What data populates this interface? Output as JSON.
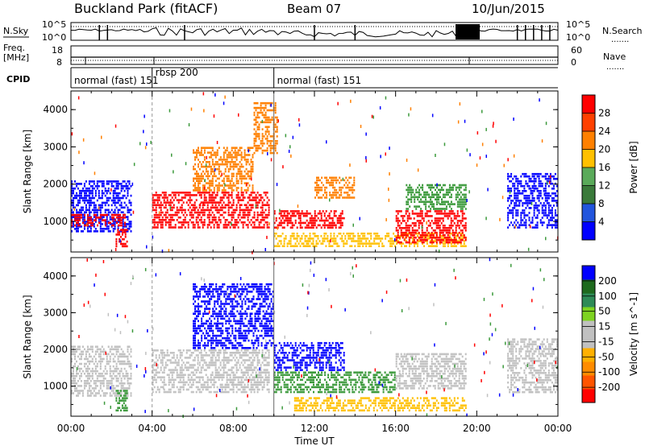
{
  "header": {
    "station": "Buckland Park (fitACF)",
    "beam": "Beam 07",
    "date": "10/Jun/2015"
  },
  "strip_labels": {
    "nsky": "N.Sky",
    "nsearch": "N.Search",
    "freq_line1": "Freq.",
    "freq_line2": "[MHz]",
    "nave": "Nave",
    "cpid": "CPID",
    "dots": "......."
  },
  "strip_ticks": {
    "noise_left": [
      "10^5",
      "10^0"
    ],
    "noise_right": [
      "10^5",
      "10^0"
    ],
    "freq_left": [
      "18",
      "8"
    ],
    "nave_right": [
      "60",
      "0"
    ]
  },
  "cpid_segments": [
    {
      "name": "normal (fast) 151",
      "start_hour": 0.0
    },
    {
      "name": "rbsp 200",
      "start_hour": 4.0
    },
    {
      "name": "normal (fast) 151",
      "start_hour": 10.0
    }
  ],
  "colors": {
    "power_scale": [
      "#0000ff",
      "#2255dd",
      "#3a7a3a",
      "#5aaa5a",
      "#ffc000",
      "#ff8000",
      "#ff4000",
      "#ff0000"
    ],
    "velocity_scale": [
      "#ff0000",
      "#ff5500",
      "#ff8c00",
      "#ffb000",
      "#c0c0c0",
      "#c0c0c0",
      "#7ed321",
      "#2e8b57",
      "#1e6a1e",
      "#0000ff"
    ],
    "data_red": "#ff0000",
    "data_orange": "#ff8000",
    "data_yellow": "#ffc000",
    "data_green": "#3c9a3c",
    "data_blue": "#0000ff",
    "data_gray": "#c0c0c0"
  },
  "chart_data": [
    {
      "type": "heatmap",
      "name": "power",
      "ylabel": "Slant Range [km]",
      "ylim": [
        180,
        4500
      ],
      "xlim": [
        0,
        24
      ],
      "yticks": [
        "1000",
        "2000",
        "3000",
        "4000"
      ],
      "colorbar": {
        "label": "Power [dB]",
        "ticks": [
          "4",
          "8",
          "12",
          "16",
          "20",
          "24",
          "28"
        ]
      },
      "echo_regions": [
        {
          "t0": 0.0,
          "t1": 3.0,
          "r0": 700,
          "r1": 2100,
          "level": "blue"
        },
        {
          "t0": 0.0,
          "t1": 2.7,
          "r0": 850,
          "r1": 1200,
          "level": "red"
        },
        {
          "t0": 2.2,
          "t1": 2.8,
          "r0": 300,
          "r1": 800,
          "level": "red"
        },
        {
          "t0": 4.0,
          "t1": 9.8,
          "r0": 800,
          "r1": 1800,
          "level": "red"
        },
        {
          "t0": 6.0,
          "t1": 9.0,
          "r0": 1800,
          "r1": 3000,
          "level": "orange"
        },
        {
          "t0": 9.0,
          "t1": 10.2,
          "r0": 2800,
          "r1": 4200,
          "level": "orange"
        },
        {
          "t0": 10.0,
          "t1": 19.5,
          "r0": 300,
          "r1": 700,
          "level": "yellow"
        },
        {
          "t0": 10.0,
          "t1": 13.5,
          "r0": 800,
          "r1": 1300,
          "level": "red"
        },
        {
          "t0": 12.0,
          "t1": 14.0,
          "r0": 1600,
          "r1": 2200,
          "level": "orange"
        },
        {
          "t0": 16.0,
          "t1": 19.5,
          "r0": 400,
          "r1": 1300,
          "level": "red"
        },
        {
          "t0": 16.5,
          "t1": 19.5,
          "r0": 1300,
          "r1": 2000,
          "level": "green"
        },
        {
          "t0": 21.5,
          "t1": 24.0,
          "r0": 800,
          "r1": 2300,
          "level": "blue"
        }
      ]
    },
    {
      "type": "heatmap",
      "name": "velocity",
      "ylabel": "Slant Range [km]",
      "xlabel": "Time UT",
      "ylim": [
        180,
        4500
      ],
      "xlim": [
        0,
        24
      ],
      "x_tick_labels": [
        "00:00",
        "04:00",
        "08:00",
        "12:00",
        "16:00",
        "20:00",
        "00:00"
      ],
      "yticks": [
        "1000",
        "2000",
        "3000",
        "4000"
      ],
      "colorbar": {
        "label": "Velocity [m s^-1]",
        "ticks": [
          "200",
          "100",
          "50",
          "15",
          "-15",
          "-50",
          "-100",
          "-200"
        ]
      },
      "echo_regions": [
        {
          "t0": 0.0,
          "t1": 3.0,
          "r0": 700,
          "r1": 2100,
          "level": "gray"
        },
        {
          "t0": 2.2,
          "t1": 2.8,
          "r0": 300,
          "r1": 900,
          "level": "green"
        },
        {
          "t0": 4.0,
          "t1": 9.8,
          "r0": 800,
          "r1": 2000,
          "level": "gray"
        },
        {
          "t0": 6.0,
          "t1": 10.0,
          "r0": 2000,
          "r1": 3800,
          "level": "blue"
        },
        {
          "t0": 10.0,
          "t1": 13.5,
          "r0": 1400,
          "r1": 2200,
          "level": "blue"
        },
        {
          "t0": 10.0,
          "t1": 16.0,
          "r0": 800,
          "r1": 1400,
          "level": "green"
        },
        {
          "t0": 11.0,
          "t1": 19.5,
          "r0": 300,
          "r1": 700,
          "level": "yellow"
        },
        {
          "t0": 16.0,
          "t1": 19.5,
          "r0": 900,
          "r1": 1900,
          "level": "gray"
        },
        {
          "t0": 21.5,
          "t1": 24.0,
          "r0": 800,
          "r1": 2300,
          "level": "gray"
        }
      ]
    }
  ]
}
